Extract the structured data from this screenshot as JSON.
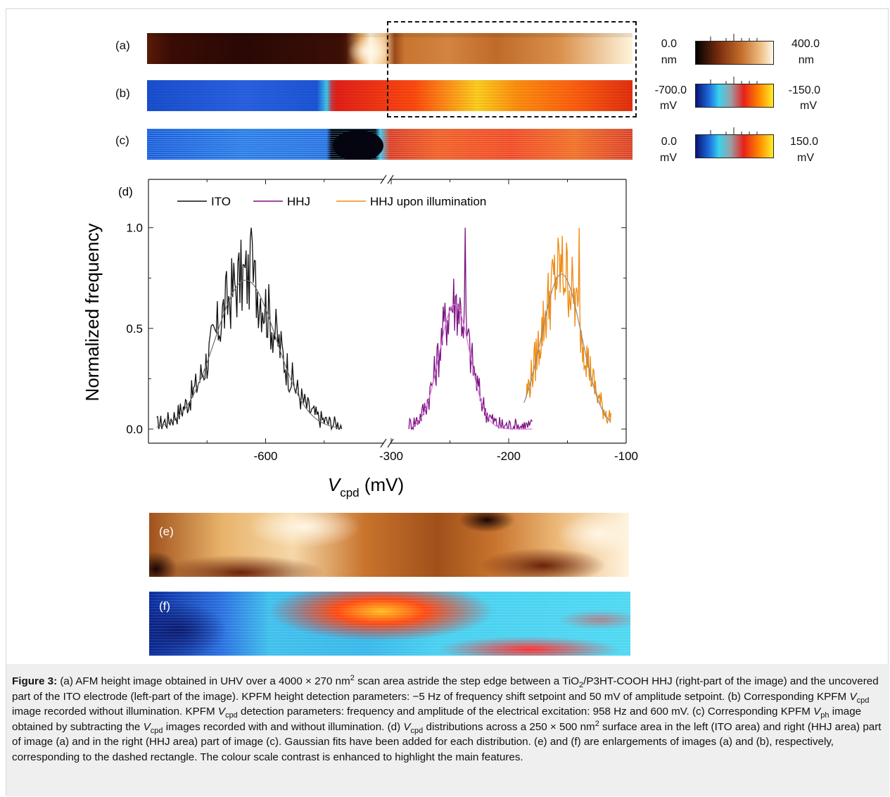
{
  "panels": {
    "a": {
      "label": "(a)",
      "scale_min": "0.0",
      "scale_min_unit": "nm",
      "scale_max": "400.0",
      "scale_max_unit": "nm"
    },
    "b": {
      "label": "(b)",
      "scale_min": "-700.0",
      "scale_min_unit": "mV",
      "scale_max": "-150.0",
      "scale_max_unit": "mV"
    },
    "c": {
      "label": "(c)",
      "scale_min": "0.0",
      "scale_min_unit": "mV",
      "scale_max": "150.0",
      "scale_max_unit": "mV"
    },
    "d": {
      "label": "(d)"
    },
    "e": {
      "label": "(e)"
    },
    "f": {
      "label": "(f)"
    }
  },
  "colors": {
    "height_map": [
      "#2a0805",
      "#7a2d0f",
      "#c8702e",
      "#f0c48a",
      "#fff6e6"
    ],
    "potential_map": [
      "#0a1a8a",
      "#1e6fe0",
      "#38d2ee",
      "#9aa0a8",
      "#e8201a",
      "#ff8a00",
      "#fff02a"
    ]
  },
  "chart_data": {
    "type": "line",
    "label": "(d)",
    "xlabel_main": "V",
    "xlabel_sub": "cpd",
    "xlabel_unit": " (mV)",
    "ylabel": "Normalized frequency",
    "x_axis_break": true,
    "x_left_range": [
      -700,
      -500
    ],
    "x_right_range": [
      -300,
      -100
    ],
    "x_ticks": [
      "-600",
      "-300",
      "-200",
      "-100"
    ],
    "y_ticks": [
      "0.0",
      "0.5",
      "1.0"
    ],
    "ylim": [
      -0.07,
      1.24
    ],
    "legend_placement": "top-left",
    "series": [
      {
        "name": "ITO",
        "color": "#111111",
        "center": -617,
        "sigma": 26,
        "amplitude": 0.74,
        "xmin": -693,
        "xmax": -535,
        "peak_max": 1.0
      },
      {
        "name": "HHJ",
        "color": "#7a1480",
        "center": -246,
        "sigma": 13,
        "amplitude": 0.62,
        "xmin": -285,
        "xmax": -180,
        "peak_max": 1.0
      },
      {
        "name": "HHJ upon illumination",
        "color": "#f08a10",
        "center": -155,
        "sigma": 17,
        "amplitude": 0.77,
        "xmin": -185,
        "xmax": -113,
        "peak_max": 1.0
      }
    ],
    "fits": [
      {
        "series": "ITO",
        "color": "#707070"
      },
      {
        "series": "HHJ",
        "color": "#e070e0"
      },
      {
        "series": "HHJ upon illumination",
        "color": "#8a8a8a"
      }
    ]
  },
  "caption": {
    "fig_label": "Figure 3:",
    "p1": " (a) AFM height image obtained in UHV over a 4000 × 270 nm",
    "sup1": "2",
    "p2": " scan area astride the step edge between a TiO",
    "sub1": "2",
    "p3": "/P3HT-COOH HHJ (right-part of the image) and the uncovered part of the ITO electrode (left-part of the image). KPFM height detection parameters: −5 Hz of frequency shift setpoint and 50 mV of amplitude setpoint. (b) Corresponding KPFM ",
    "v1": "V",
    "vsub1": "cpd",
    "p4": " image recorded without illumination. KPFM ",
    "v2": "V",
    "vsub2": "cpd",
    "p5": " detection parameters: frequency and amplitude of the electrical excitation: 958 Hz and 600 mV. (c) Corresponding KPFM ",
    "v3": "V",
    "vsub3": "ph",
    "p6": " image obtained by subtracting the ",
    "v4": "V",
    "vsub4": "cpd",
    "p7": " images recorded with and without illumination. (d) ",
    "v5": "V",
    "vsub5": "cpd",
    "p8": " distributions across a 250 × 500 nm",
    "sup2": "2",
    "p9": " surface area in the left (ITO area) and right (HHJ area) part of image (a) and in the right (HHJ area) part of image (c). Gaussian fits have been added for each distribution. (e) and (f) are enlargements of images (a) and (b), respectively, corresponding to the dashed rectangle. The colour scale contrast is enhanced to highlight the main features."
  }
}
